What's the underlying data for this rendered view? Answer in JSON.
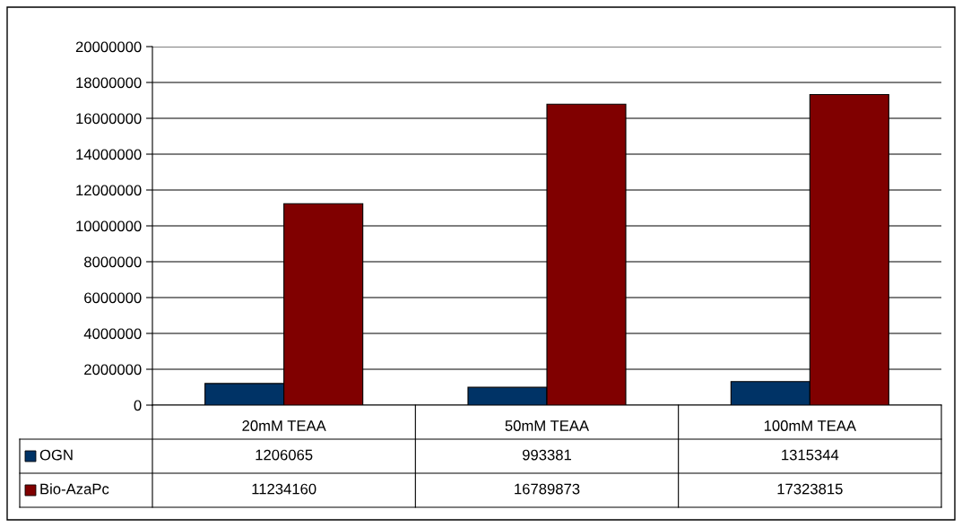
{
  "chart_data": {
    "type": "bar",
    "categories": [
      "20mM TEAA",
      "50mM TEAA",
      "100mM TEAA"
    ],
    "series": [
      {
        "name": "OGN",
        "color": "#003366",
        "values": [
          1206065,
          993381,
          1315344
        ]
      },
      {
        "name": "Bio-AzaPc",
        "color": "#800000",
        "values": [
          11234160,
          16789873,
          17323815
        ]
      }
    ],
    "ylim": [
      0,
      20000000
    ],
    "yticks": [
      0,
      2000000,
      4000000,
      6000000,
      8000000,
      10000000,
      12000000,
      14000000,
      16000000,
      18000000,
      20000000
    ],
    "grid": "y",
    "data_labels": true,
    "legend": "bottom left"
  }
}
